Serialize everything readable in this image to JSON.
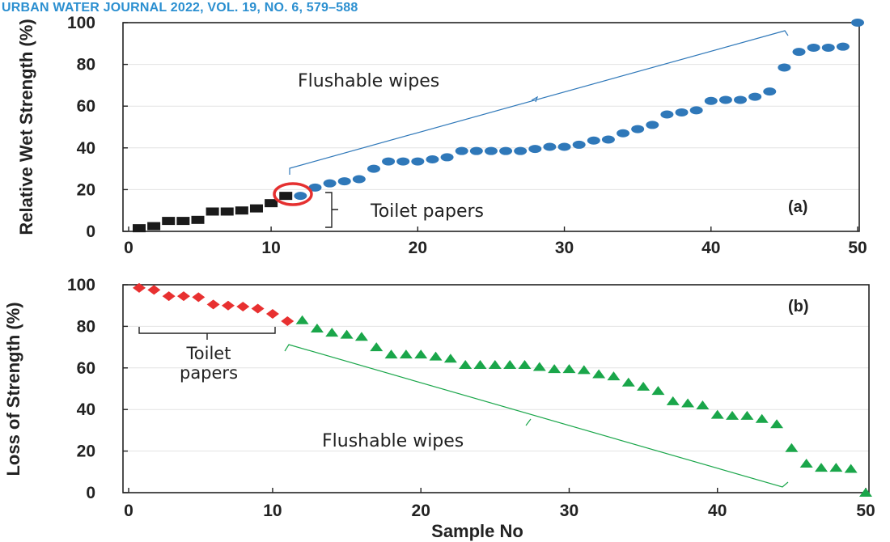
{
  "header": {
    "journal": "URBAN WATER JOURNAL 2022, VOL. 19, NO. 6, 579–588"
  },
  "chart_data": [
    {
      "type": "scatter",
      "panel_label": "(a)",
      "ylabel": "Relative Wet Strength (%)",
      "xlabel": "",
      "xlim": [
        0,
        50
      ],
      "ylim": [
        0,
        100
      ],
      "xticks": [
        0,
        10,
        20,
        30,
        40,
        50
      ],
      "yticks": [
        0,
        20,
        40,
        60,
        80,
        100
      ],
      "grid": true,
      "series": [
        {
          "marker": "square",
          "color": "#1a1a1a",
          "x": [
            1,
            2,
            3,
            4,
            5,
            6,
            7,
            8,
            9,
            10,
            11
          ],
          "y": [
            1.5,
            2.5,
            5,
            5,
            5.5,
            9.5,
            9.5,
            10,
            11,
            13.5,
            17
          ]
        },
        {
          "marker": "circle",
          "color": "#2f78b9",
          "x": [
            12,
            13,
            14,
            15,
            16,
            17,
            18,
            19,
            20,
            21,
            22,
            23,
            24,
            25,
            26,
            27,
            28,
            29,
            30,
            31,
            32,
            33,
            34,
            35,
            36,
            37,
            38,
            39,
            40,
            41,
            42,
            43,
            44,
            45,
            46,
            47,
            48,
            49,
            50
          ],
          "y": [
            17,
            21,
            23,
            24,
            25,
            30,
            33.5,
            33.5,
            33.5,
            34.5,
            35.5,
            38.5,
            38.5,
            38.5,
            38.5,
            38.5,
            39.5,
            40.5,
            40.5,
            41.5,
            43.5,
            44,
            47,
            49,
            51,
            56,
            57,
            58,
            62.5,
            63,
            63,
            64.5,
            67,
            78.5,
            86,
            88,
            88,
            88.5,
            100
          ]
        }
      ],
      "annotations": {
        "wipes": "Flushable wipes",
        "toilet": "Toilet papers"
      },
      "highlight_color": "#e53030"
    },
    {
      "type": "scatter",
      "panel_label": "(b)",
      "ylabel": "Loss of Strength (%)",
      "xlabel": "Sample No",
      "xlim": [
        0,
        50
      ],
      "ylim": [
        0,
        100
      ],
      "xticks": [
        0,
        10,
        20,
        30,
        40,
        50
      ],
      "yticks": [
        0,
        20,
        40,
        60,
        80,
        100
      ],
      "grid": true,
      "series": [
        {
          "marker": "diamond",
          "color": "#e83030",
          "x": [
            1,
            2,
            3,
            4,
            5,
            6,
            7,
            8,
            9,
            10,
            11
          ],
          "y": [
            98.5,
            97.5,
            94.5,
            94.5,
            94,
            90.5,
            90,
            89.5,
            88.5,
            86,
            82.5
          ]
        },
        {
          "marker": "triangle",
          "color": "#1aa64a",
          "x": [
            12,
            13,
            14,
            15,
            16,
            17,
            18,
            19,
            20,
            21,
            22,
            23,
            24,
            25,
            26,
            27,
            28,
            29,
            30,
            31,
            32,
            33,
            34,
            35,
            36,
            37,
            38,
            39,
            40,
            41,
            42,
            43,
            44,
            45,
            46,
            47,
            48,
            49,
            50
          ],
          "y": [
            83,
            79,
            77,
            76,
            75,
            70,
            66.5,
            66.5,
            66.5,
            65.5,
            64.5,
            61.5,
            61.5,
            61.5,
            61.5,
            61.5,
            60.5,
            59.5,
            59.5,
            59,
            57,
            56,
            53,
            51,
            49,
            44,
            43,
            42,
            37.5,
            37,
            37,
            35.5,
            33,
            21.5,
            14,
            12,
            12,
            11.5,
            0
          ]
        }
      ],
      "annotations": {
        "toilet_line1": "Toilet",
        "toilet_line2": "papers",
        "wipes": "Flushable wipes"
      }
    }
  ]
}
